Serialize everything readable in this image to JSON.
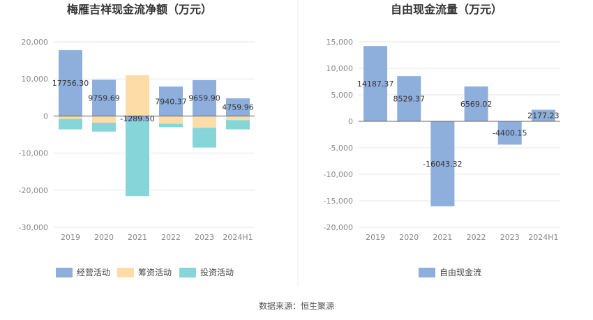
{
  "source": "数据来源：恒生聚源",
  "chart_data": [
    {
      "type": "bar",
      "stacked": true,
      "title": "梅雁吉祥现金流净额（万元）",
      "categories": [
        "2019",
        "2020",
        "2021",
        "2022",
        "2023",
        "2024H1"
      ],
      "ylim": [
        -30000,
        20000
      ],
      "yticks": [
        20000,
        10000,
        0,
        -10000,
        -20000,
        -30000
      ],
      "ytick_labels": [
        "20,000",
        "10,000",
        "0",
        "-10,000",
        "-20,000",
        "-30,000"
      ],
      "grid": true,
      "legend_position": "bottom",
      "series": [
        {
          "name": "经营活动",
          "color": "#8eaedc",
          "values": [
            17756.3,
            9759.69,
            -1289.5,
            7940.37,
            9659.9,
            4759.96
          ]
        },
        {
          "name": "筹资活动",
          "color": "#fddca8",
          "values": [
            -800,
            -1800,
            11000,
            -2100,
            -3200,
            -1100
          ]
        },
        {
          "name": "投资活动",
          "color": "#86d6d9",
          "values": [
            -2800,
            -2400,
            -20300,
            -900,
            -5300,
            -2500
          ]
        }
      ],
      "data_labels": [
        "17756.30",
        "9759.69",
        "-1289.50",
        "7940.37",
        "9659.90",
        "4759.96"
      ]
    },
    {
      "type": "bar",
      "title": "自由现金流量（万元）",
      "categories": [
        "2019",
        "2020",
        "2021",
        "2022",
        "2023",
        "2024H1"
      ],
      "ylim": [
        -20000,
        15000
      ],
      "yticks": [
        15000,
        10000,
        5000,
        0,
        -5000,
        -10000,
        -15000,
        -20000
      ],
      "ytick_labels": [
        "15,000",
        "10,000",
        "5,000",
        "0",
        "-5,000",
        "-10,000",
        "-15,000",
        "-20,000"
      ],
      "grid": true,
      "legend_position": "bottom",
      "series": [
        {
          "name": "自由现金流",
          "color": "#8eaedc",
          "values": [
            14187.37,
            8529.37,
            -16043.32,
            6569.02,
            -4400.15,
            2177.23
          ]
        }
      ],
      "data_labels": [
        "14187.37",
        "8529.37",
        "-16043.32",
        "6569.02",
        "-4400.15",
        "2177.23"
      ]
    }
  ]
}
